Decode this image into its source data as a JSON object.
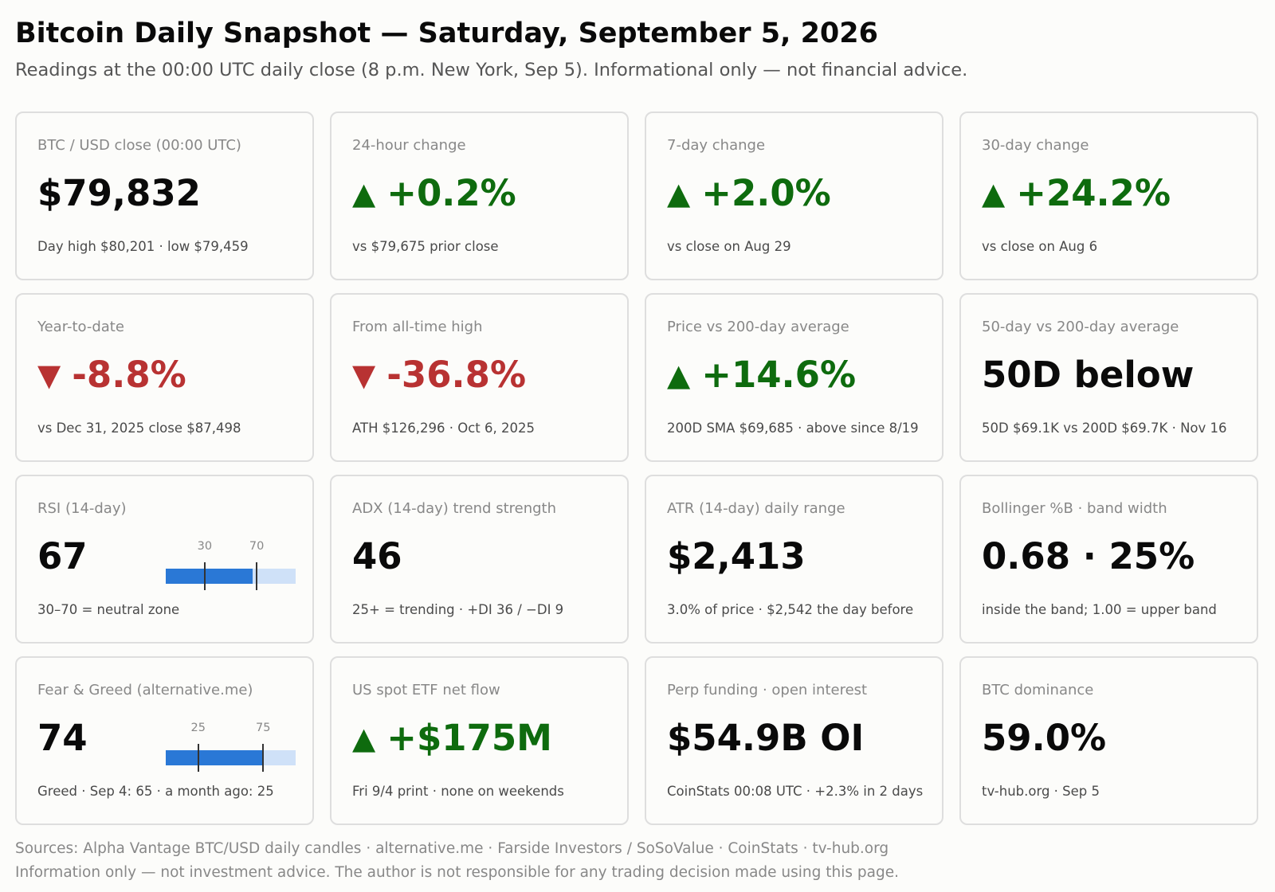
{
  "header": {
    "title": "Bitcoin Daily Snapshot — Saturday, September 5, 2026",
    "subtitle": "Readings at the 00:00 UTC daily close (8 p.m. New York, Sep 5). Informational only — not financial advice."
  },
  "colors": {
    "up": "#0e6b0e",
    "down": "#b83232",
    "gauge_fill": "#2a78d6",
    "gauge_track": "#cfe1f8"
  },
  "cards": {
    "close": {
      "label": "BTC / USD close (00:00 UTC)",
      "value": "$79,832",
      "note": "Day high $80,201 · low $79,459"
    },
    "change24h": {
      "label": "24-hour change",
      "arrow": "▲",
      "value": "+0.2%",
      "note": "vs $79,675 prior close"
    },
    "change7d": {
      "label": "7-day change",
      "arrow": "▲",
      "value": "+2.0%",
      "note": "vs close on Aug 29"
    },
    "change30d": {
      "label": "30-day change",
      "arrow": "▲",
      "value": "+24.2%",
      "note": "vs close on Aug 6"
    },
    "ytd": {
      "label": "Year-to-date",
      "arrow": "▼",
      "value": "-8.8%",
      "note": "vs Dec 31, 2025 close $87,498"
    },
    "ath": {
      "label": "From all-time high",
      "arrow": "▼",
      "value": "-36.8%",
      "note": "ATH $126,296 · Oct 6, 2025"
    },
    "sma200": {
      "label": "Price vs 200-day average",
      "arrow": "▲",
      "value": "+14.6%",
      "note": "200D SMA $69,685 · above since 8/19"
    },
    "cross": {
      "label": "50-day vs 200-day average",
      "value": "50D below",
      "note": "50D $69.1K vs 200D $69.7K · Nov 16"
    },
    "rsi": {
      "label": "RSI (14-day)",
      "value": "67",
      "note": "30–70 = neutral zone",
      "gauge": {
        "value": 67,
        "min": 0,
        "max": 100,
        "low_label": "30",
        "high_label": "70",
        "low": 30,
        "high": 70
      }
    },
    "adx": {
      "label": "ADX (14-day) trend strength",
      "value": "46",
      "note": "25+ = trending · +DI 36 / −DI 9"
    },
    "atr": {
      "label": "ATR (14-day) daily range",
      "value": "$2,413",
      "note": "3.0% of price · $2,542 the day before"
    },
    "bollinger": {
      "label": "Bollinger %B · band width",
      "value": "0.68 · 25%",
      "note": "inside the band; 1.00 = upper band"
    },
    "fng": {
      "label": "Fear & Greed (alternative.me)",
      "value": "74",
      "note": "Greed · Sep 4: 65 · a month ago: 25",
      "gauge": {
        "value": 74,
        "min": 0,
        "max": 100,
        "low_label": "25",
        "high_label": "75",
        "low": 25,
        "high": 75
      }
    },
    "etf": {
      "label": "US spot ETF net flow",
      "arrow": "▲",
      "value": "+$175M",
      "note": "Fri 9/4 print · none on weekends"
    },
    "perp": {
      "label": "Perp funding · open interest",
      "value": "$54.9B OI",
      "note": "CoinStats 00:08 UTC · +2.3% in 2 days"
    },
    "dominance": {
      "label": "BTC dominance",
      "value": "59.0%",
      "note": "tv-hub.org · Sep 5"
    }
  },
  "footer": {
    "sources": "Sources: Alpha Vantage BTC/USD daily candles · alternative.me · Farside Investors / SoSoValue · CoinStats · tv-hub.org",
    "disclaimer": "Information only — not investment advice. The author is not responsible for any trading decision made using this page."
  }
}
